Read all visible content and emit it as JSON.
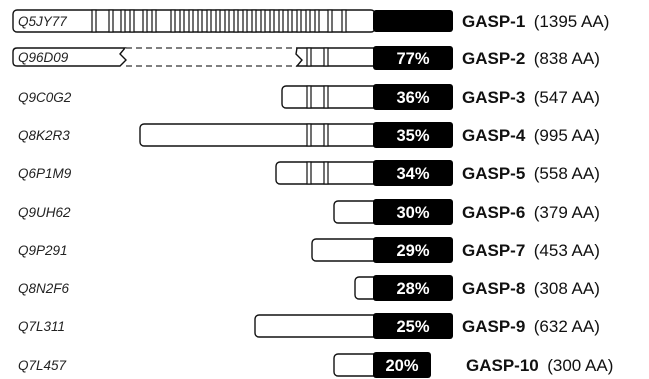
{
  "proteins": [
    {
      "accession": "Q5JY77",
      "name": "GASP-1",
      "length": "(1395 AA)",
      "identity": ""
    },
    {
      "accession": "Q96D09",
      "name": "GASP-2",
      "length": "(838 AA)",
      "identity": "77%"
    },
    {
      "accession": "Q9C0G2",
      "name": "GASP-3",
      "length": "(547 AA)",
      "identity": "36%"
    },
    {
      "accession": "Q8K2R3",
      "name": "GASP-4",
      "length": "(995 AA)",
      "identity": "35%"
    },
    {
      "accession": "Q6P1M9",
      "name": "GASP-5",
      "length": "(558 AA)",
      "identity": "34%"
    },
    {
      "accession": "Q9UH62",
      "name": "GASP-6",
      "length": "(379 AA)",
      "identity": "30%"
    },
    {
      "accession": "Q9P291",
      "name": "GASP-7",
      "length": "(453 AA)",
      "identity": "29%"
    },
    {
      "accession": "Q8N2F6",
      "name": "GASP-8",
      "length": "(308 AA)",
      "identity": "28%"
    },
    {
      "accession": "Q7L311",
      "name": "GASP-9",
      "length": "(632 AA)",
      "identity": "25%"
    },
    {
      "accession": "Q7L457",
      "name": "GASP-10",
      "length": "(300 AA)",
      "identity": "20%"
    }
  ]
}
